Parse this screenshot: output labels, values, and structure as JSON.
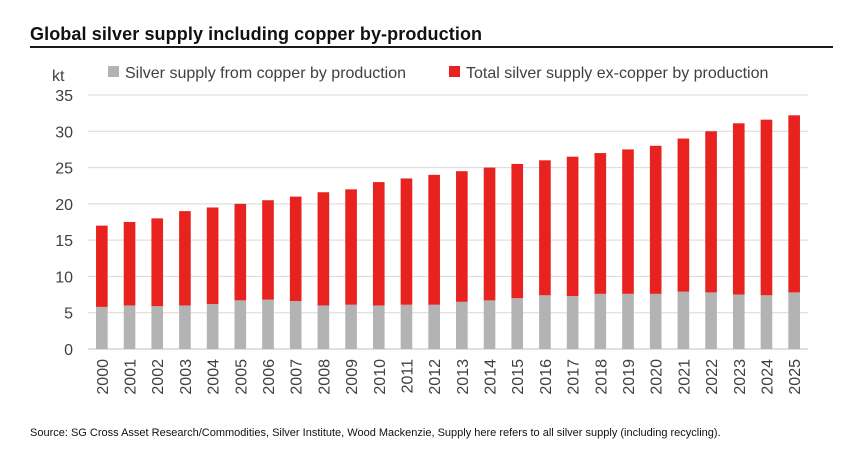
{
  "title": "Global silver supply including copper by-production",
  "source": "Source: SG Cross Asset Research/Commodities, Silver Institute, Wood Mackenzie, Supply here refers to all silver supply (including recycling).",
  "colors": {
    "copper": "#b3b3b3",
    "ex_copper": "#e8231f",
    "grid": "#d9d9d9",
    "axis_text": "#404040"
  },
  "chart_data": {
    "type": "bar",
    "stacked": true,
    "title": "Global silver supply including copper by-production",
    "ylabel": "kt",
    "xlabel": "",
    "ylim": [
      0,
      35
    ],
    "yticks": [
      0,
      5,
      10,
      15,
      20,
      25,
      30,
      35
    ],
    "grid": true,
    "legend_position": "top",
    "categories": [
      "2000",
      "2001",
      "2002",
      "2003",
      "2004",
      "2005",
      "2006",
      "2007",
      "2008",
      "2009",
      "2010",
      "2011",
      "2012",
      "2013",
      "2014",
      "2015",
      "2016",
      "2017",
      "2018",
      "2019",
      "2020",
      "2021",
      "2022",
      "2023",
      "2024",
      "2025"
    ],
    "series": [
      {
        "name": "Silver supply from copper by production",
        "color": "#b3b3b3",
        "values": [
          5.8,
          6.0,
          5.9,
          6.0,
          6.2,
          6.7,
          6.8,
          6.6,
          6.0,
          6.1,
          6.0,
          6.1,
          6.1,
          6.5,
          6.7,
          7.0,
          7.4,
          7.3,
          7.6,
          7.6,
          7.6,
          7.9,
          7.8,
          7.5,
          7.4,
          7.8
        ]
      },
      {
        "name": "Total silver supply ex-copper by production",
        "color": "#e8231f",
        "values": [
          11.2,
          11.5,
          12.1,
          13.0,
          13.3,
          13.3,
          13.7,
          14.4,
          15.6,
          15.9,
          17.0,
          17.4,
          17.9,
          18.0,
          18.3,
          18.5,
          18.6,
          19.2,
          19.4,
          19.9,
          20.4,
          21.1,
          22.2,
          23.6,
          24.2,
          24.4
        ]
      }
    ]
  }
}
